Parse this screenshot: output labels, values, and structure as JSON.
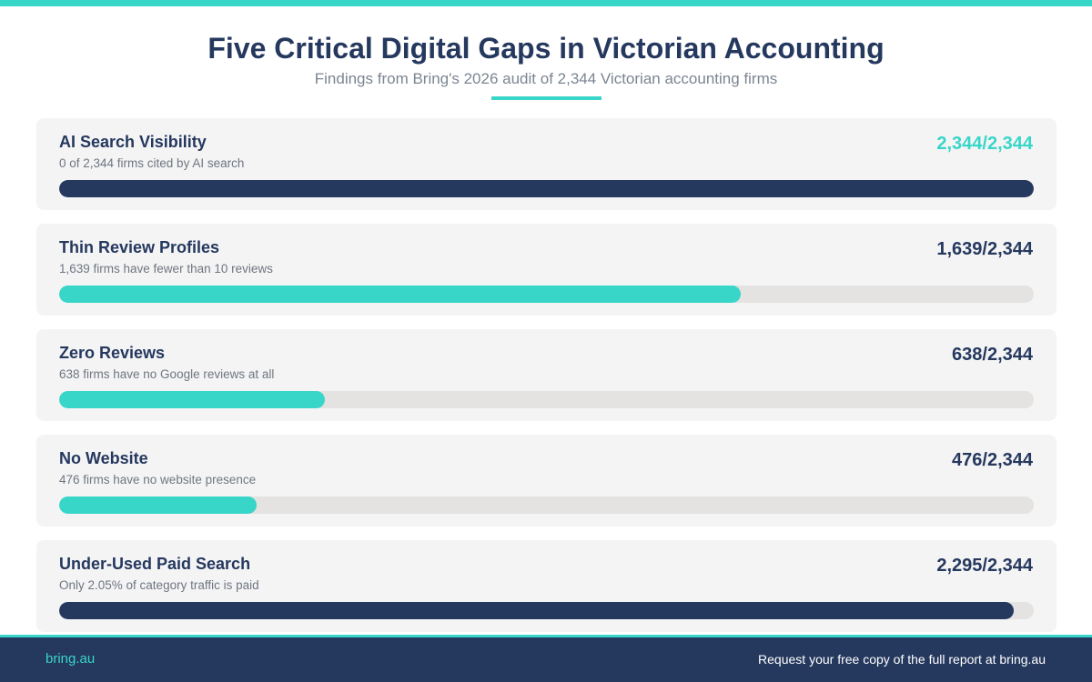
{
  "header": {
    "title": "Five Critical Digital Gaps in Victorian Accounting",
    "subtitle": "Findings from Bring's 2026 audit of 2,344 Victorian accounting firms"
  },
  "colors": {
    "accent": "#38d6c8",
    "navy": "#25385e",
    "track": "#e4e3e1",
    "card": "#f4f4f5"
  },
  "chart_data": {
    "type": "bar",
    "orientation": "horizontal",
    "total": 2344,
    "categories": [
      "AI Search Visibility",
      "Thin Review Profiles",
      "Zero Reviews",
      "No Website",
      "Under-Used Paid Search"
    ],
    "values": [
      2344,
      1639,
      638,
      476,
      2295
    ],
    "items": [
      {
        "label": "AI Search Visibility",
        "description": "0 of 2,344 firms cited by AI search",
        "value": 2344,
        "value_text": "2,344/2,344",
        "bar_color": "#25385e",
        "value_color": "#38d6c8"
      },
      {
        "label": "Thin Review Profiles",
        "description": "1,639 firms have fewer than 10 reviews",
        "value": 1639,
        "value_text": "1,639/2,344",
        "bar_color": "#38d6c8",
        "value_color": "#25385e"
      },
      {
        "label": "Zero Reviews",
        "description": "638 firms have no Google reviews at all",
        "value": 638,
        "value_text": "638/2,344",
        "bar_color": "#38d6c8",
        "value_color": "#25385e"
      },
      {
        "label": "No Website",
        "description": "476 firms have no website presence",
        "value": 476,
        "value_text": "476/2,344",
        "bar_color": "#38d6c8",
        "value_color": "#25385e"
      },
      {
        "label": "Under-Used Paid Search",
        "description": "Only 2.05% of category traffic is paid",
        "value": 2295,
        "value_text": "2,295/2,344",
        "bar_color": "#25385e",
        "value_color": "#25385e"
      }
    ]
  },
  "footer": {
    "brand": "bring.au",
    "cta": "Request your free copy of the full report at bring.au"
  }
}
